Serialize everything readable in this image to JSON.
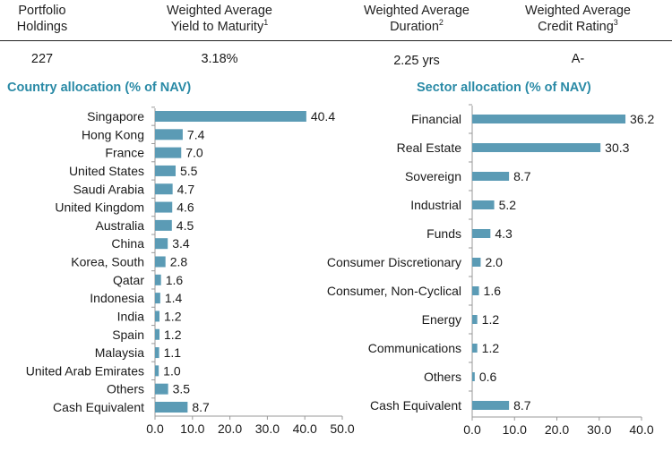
{
  "summary": {
    "holdings": {
      "l1": "Portfolio",
      "l2": "Holdings",
      "sup": "",
      "value": "227"
    },
    "ytm": {
      "l1": "Weighted Average",
      "l2": "Yield to Maturity",
      "sup": "1",
      "value": "3.18%"
    },
    "duration": {
      "l1": "Weighted Average",
      "l2": "Duration",
      "sup": "2",
      "value": "2.25 yrs"
    },
    "rating": {
      "l1": "Weighted Average",
      "l2": "Credit Rating",
      "sup": "3",
      "value": "A-"
    }
  },
  "colors": {
    "bar": "#5b9bb5",
    "title": "#2a8aa6",
    "axis": "#999999"
  },
  "chart_data": [
    {
      "type": "bar",
      "orientation": "horizontal",
      "title": "Country allocation (% of NAV)",
      "categories": [
        "Singapore",
        "Hong Kong",
        "France",
        "United States",
        "Saudi Arabia",
        "United Kingdom",
        "Australia",
        "China",
        "Korea, South",
        "Qatar",
        "Indonesia",
        "India",
        "Spain",
        "Malaysia",
        "United Arab Emirates",
        "Others",
        "Cash Equivalent"
      ],
      "values": [
        40.4,
        7.4,
        7.0,
        5.5,
        4.7,
        4.6,
        4.5,
        3.4,
        2.8,
        1.6,
        1.4,
        1.2,
        1.2,
        1.1,
        1.0,
        3.5,
        8.7
      ],
      "value_labels": [
        "40.4",
        "7.4",
        "7.0",
        "5.5",
        "4.7",
        "4.6",
        "4.5",
        "3.4",
        "2.8",
        "1.6",
        "1.4",
        "1.2",
        "1.2",
        "1.1",
        "1.0",
        "3.5",
        "8.7"
      ],
      "xlim": [
        0,
        50
      ],
      "xticks": [
        "0.0",
        "10.0",
        "20.0",
        "30.0",
        "40.0",
        "50.0"
      ],
      "grid": false
    },
    {
      "type": "bar",
      "orientation": "horizontal",
      "title": "Sector allocation (% of NAV)",
      "categories": [
        "Financial",
        "Real Estate",
        "Sovereign",
        "Industrial",
        "Funds",
        "Consumer Discretionary",
        "Consumer, Non-Cyclical",
        "Energy",
        "Communications",
        "Others",
        "Cash Equivalent"
      ],
      "values": [
        36.2,
        30.3,
        8.7,
        5.2,
        4.3,
        2.0,
        1.6,
        1.2,
        1.2,
        0.6,
        8.7
      ],
      "value_labels": [
        "36.2",
        "30.3",
        "8.7",
        "5.2",
        "4.3",
        "2.0",
        "1.6",
        "1.2",
        "1.2",
        "0.6",
        "8.7"
      ],
      "xlim": [
        0,
        40
      ],
      "xticks": [
        "0.0",
        "10.0",
        "20.0",
        "30.0",
        "40.0"
      ],
      "grid": false
    }
  ]
}
